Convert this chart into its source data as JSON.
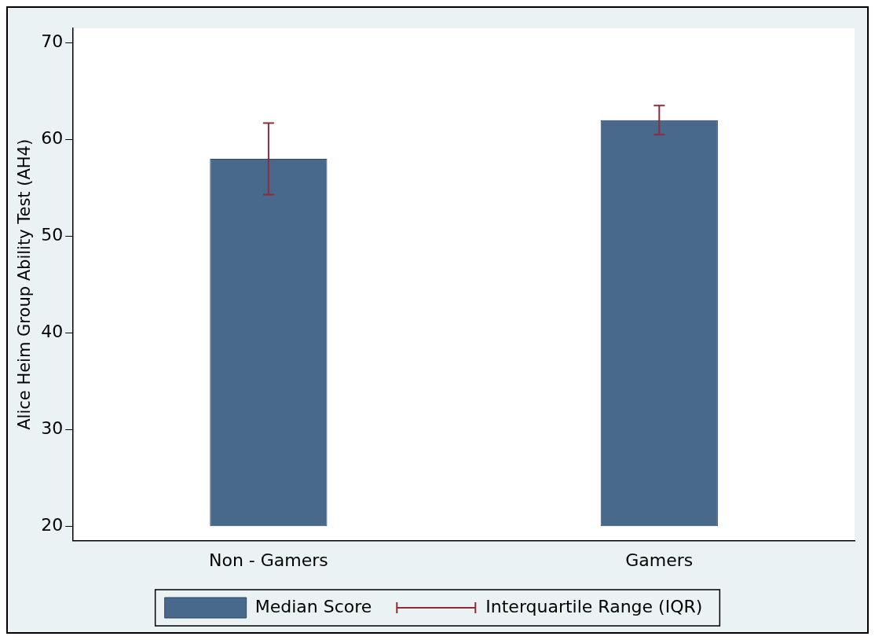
{
  "chart_data": {
    "type": "bar",
    "ylabel": "Alice Heim Group Ability Test (AH4)",
    "categories": [
      "Non - Gamers",
      "Gamers"
    ],
    "series": [
      {
        "name": "Median Score",
        "color": "#48698c",
        "base": [
          20,
          20
        ],
        "values": [
          38,
          42
        ],
        "errors": [
          [
            54.3,
            61.7
          ],
          [
            60.5,
            63.5
          ]
        ]
      }
    ],
    "annotations": [
      "Interquartile Range (IQR)"
    ],
    "ylim": [
      18.5,
      71.5
    ],
    "yticks": [
      20,
      30,
      40,
      50,
      60,
      70
    ],
    "grid": false,
    "legend": "bottom"
  }
}
